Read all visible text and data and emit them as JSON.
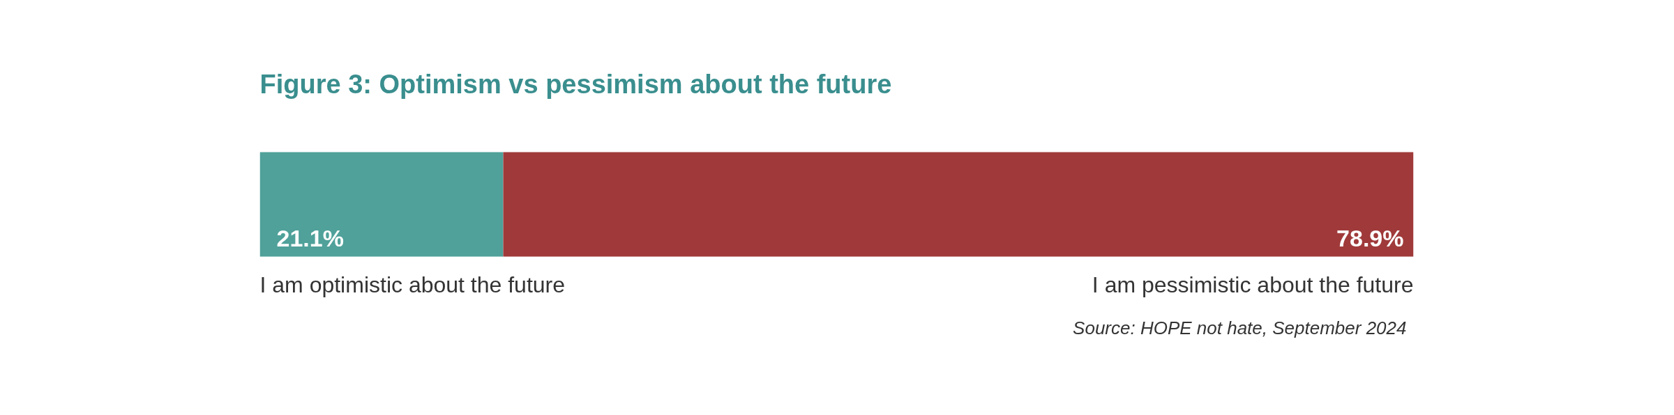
{
  "chart_data": {
    "type": "bar",
    "title": "Figure 3: Optimism vs pessimism about the future",
    "orientation": "horizontal",
    "stacked": true,
    "categories": [
      null
    ],
    "series": [
      {
        "name": "I am optimistic about the future",
        "color": "#4fa19a",
        "values": [
          21.1
        ],
        "value_labels": [
          "21.1%"
        ]
      },
      {
        "name": "I am pessimistic about the future",
        "color": "#a03a3a",
        "values": [
          78.9
        ],
        "value_labels": [
          "78.9%"
        ]
      }
    ],
    "annotations": [
      "Source: HOPE not hate, September 2024"
    ]
  }
}
